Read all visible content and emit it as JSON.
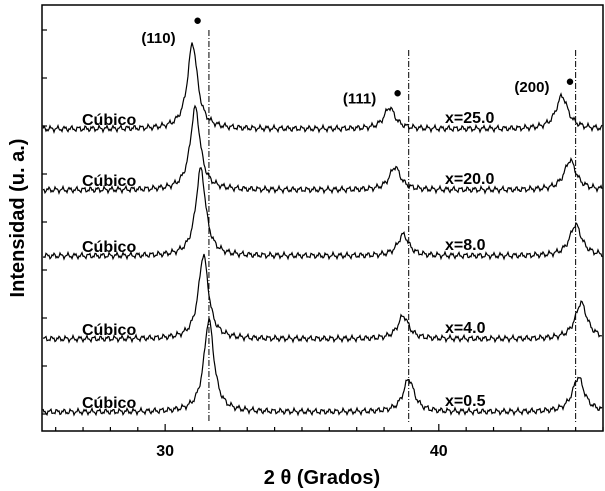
{
  "chart_data": {
    "type": "line",
    "xlabel": "2 θ (Grados)",
    "ylabel": "Intensidad (u. a.)",
    "xlim": [
      25.5,
      46.0
    ],
    "xticks": [
      30,
      40
    ],
    "grid": false,
    "peak_annotations": [
      {
        "label": "(110)",
        "x": 31.0,
        "marker": "●"
      },
      {
        "label": "(111)",
        "x": 38.2,
        "marker": "●"
      },
      {
        "label": "(200)",
        "x": 44.5,
        "marker": "●"
      }
    ],
    "reference_lines_x": [
      31.6,
      38.9,
      45.0
    ],
    "series": [
      {
        "name": "x=25.0",
        "phase": "Cúbico",
        "peaks": [
          [
            31.0,
            5.2
          ],
          [
            38.2,
            1.3
          ],
          [
            44.5,
            2.0
          ]
        ]
      },
      {
        "name": "x=20.0",
        "phase": "Cúbico",
        "peaks": [
          [
            31.1,
            5.0
          ],
          [
            38.4,
            1.4
          ],
          [
            44.8,
            1.8
          ]
        ]
      },
      {
        "name": "x=8.0",
        "phase": "Cúbico",
        "peaks": [
          [
            31.3,
            5.3
          ],
          [
            38.7,
            1.3
          ],
          [
            45.0,
            1.9
          ]
        ]
      },
      {
        "name": "x=4.0",
        "phase": "Cúbico",
        "peaks": [
          [
            31.4,
            5.1
          ],
          [
            38.7,
            1.4
          ],
          [
            45.2,
            2.2
          ]
        ]
      },
      {
        "name": "x=0.5",
        "phase": "Cúbico",
        "peaks": [
          [
            31.6,
            5.6
          ],
          [
            38.9,
            2.0
          ],
          [
            45.1,
            2.1
          ]
        ]
      }
    ]
  }
}
